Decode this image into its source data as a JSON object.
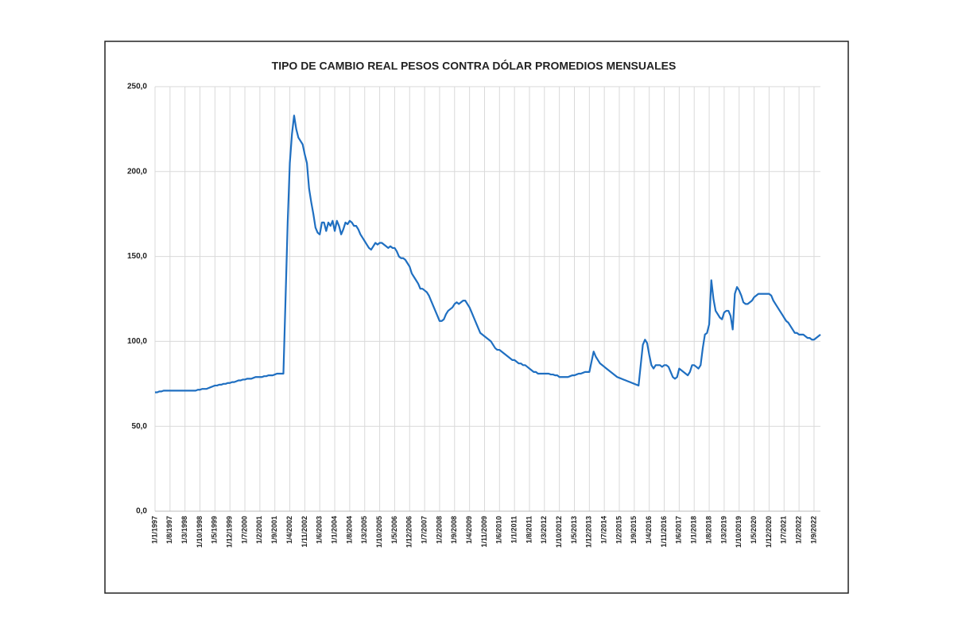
{
  "chart_data": {
    "type": "line",
    "title": "TIPO DE CAMBIO REAL PESOS CONTRA DÓLAR PROMEDIOS MENSUALES",
    "categories": [
      "1/1/1997",
      null,
      null,
      null,
      null,
      null,
      null,
      "1/8/1997",
      null,
      null,
      null,
      null,
      null,
      null,
      "1/3/1998",
      null,
      null,
      null,
      null,
      null,
      null,
      "1/10/1998",
      null,
      null,
      null,
      null,
      null,
      null,
      "1/5/1999",
      null,
      null,
      null,
      null,
      null,
      null,
      "1/12/1999",
      null,
      null,
      null,
      null,
      null,
      null,
      "1/7/2000",
      null,
      null,
      null,
      null,
      null,
      null,
      "1/2/2001",
      null,
      null,
      null,
      null,
      null,
      null,
      "1/9/2001",
      null,
      null,
      null,
      null,
      null,
      null,
      "1/4/2002",
      null,
      null,
      null,
      null,
      null,
      null,
      "1/11/2002",
      null,
      null,
      null,
      null,
      null,
      null,
      "1/6/2003",
      null,
      null,
      null,
      null,
      null,
      null,
      "1/1/2004",
      null,
      null,
      null,
      null,
      null,
      null,
      "1/8/2004",
      null,
      null,
      null,
      null,
      null,
      null,
      "1/3/2005",
      null,
      null,
      null,
      null,
      null,
      null,
      "1/10/2005",
      null,
      null,
      null,
      null,
      null,
      null,
      "1/5/2006",
      null,
      null,
      null,
      null,
      null,
      null,
      "1/12/2006",
      null,
      null,
      null,
      null,
      null,
      null,
      "1/7/2007",
      null,
      null,
      null,
      null,
      null,
      null,
      "1/2/2008",
      null,
      null,
      null,
      null,
      null,
      null,
      "1/9/2008",
      null,
      null,
      null,
      null,
      null,
      null,
      "1/4/2009",
      null,
      null,
      null,
      null,
      null,
      null,
      "1/11/2009",
      null,
      null,
      null,
      null,
      null,
      null,
      "1/6/2010",
      null,
      null,
      null,
      null,
      null,
      null,
      "1/1/2011",
      null,
      null,
      null,
      null,
      null,
      null,
      "1/8/2011",
      null,
      null,
      null,
      null,
      null,
      null,
      "1/3/2012",
      null,
      null,
      null,
      null,
      null,
      null,
      "1/10/2012",
      null,
      null,
      null,
      null,
      null,
      null,
      "1/5/2013",
      null,
      null,
      null,
      null,
      null,
      null,
      "1/12/2013",
      null,
      null,
      null,
      null,
      null,
      null,
      "1/7/2014",
      null,
      null,
      null,
      null,
      null,
      null,
      "1/2/2015",
      null,
      null,
      null,
      null,
      null,
      null,
      "1/9/2015",
      null,
      null,
      null,
      null,
      null,
      null,
      "1/4/2016",
      null,
      null,
      null,
      null,
      null,
      null,
      "1/11/2016",
      null,
      null,
      null,
      null,
      null,
      null,
      "1/6/2017",
      null,
      null,
      null,
      null,
      null,
      null,
      "1/1/2018",
      null,
      null,
      null,
      null,
      null,
      null,
      "1/8/2018",
      null,
      null,
      null,
      null,
      null,
      null,
      "1/3/2019",
      null,
      null,
      null,
      null,
      null,
      null,
      "1/10/2019",
      null,
      null,
      null,
      null,
      null,
      null,
      "1/5/2020",
      null,
      null,
      null,
      null,
      null,
      null,
      "1/12/2020",
      null,
      null,
      null,
      null,
      null,
      null,
      "1/7/2021",
      null,
      null,
      null,
      null,
      null,
      null,
      "1/2/2022",
      null,
      null,
      null,
      null,
      null,
      null,
      "1/9/2022",
      null,
      null,
      null
    ],
    "series": [
      {
        "name": "Tipo de cambio real",
        "color": "#1f6fc1",
        "values": [
          70,
          70,
          70.5,
          70.5,
          71,
          71,
          71,
          71,
          71,
          71,
          71,
          71,
          71,
          71,
          71,
          71,
          71,
          71,
          71,
          71,
          71.5,
          71.5,
          72,
          72,
          72,
          72.5,
          73,
          73.5,
          74,
          74,
          74.5,
          74.5,
          75,
          75,
          75.5,
          75.5,
          76,
          76,
          76.5,
          77,
          77,
          77.5,
          77.5,
          78,
          78,
          78,
          78.5,
          79,
          79,
          79,
          79,
          79.5,
          79.5,
          80,
          80,
          80,
          80.5,
          81,
          81,
          81,
          81,
          125,
          170,
          205,
          222,
          233,
          225,
          220,
          218,
          216,
          210,
          205,
          190,
          182,
          175,
          167,
          164,
          163,
          170,
          170,
          165,
          170,
          168,
          171,
          165,
          171,
          168,
          163,
          166,
          170,
          169,
          171,
          170,
          168,
          168,
          166,
          163,
          161,
          159,
          157,
          155,
          154,
          156,
          158,
          157,
          158,
          158,
          157,
          156,
          155,
          156,
          155,
          155,
          153,
          150,
          149,
          149,
          148,
          146,
          144,
          140,
          138,
          136,
          134,
          131,
          131,
          130,
          129,
          127,
          124,
          121,
          118,
          115,
          112,
          112,
          113,
          116,
          118,
          119,
          120,
          122,
          123,
          122,
          123,
          124,
          124,
          122,
          120,
          117,
          114,
          111,
          108,
          105,
          104,
          103,
          102,
          101,
          100,
          98,
          96,
          95,
          95,
          94,
          93,
          92,
          91,
          90,
          89,
          89,
          88,
          87,
          87,
          86,
          86,
          85,
          84,
          83,
          82,
          82,
          81,
          81,
          81,
          81,
          81,
          81,
          80.5,
          80.5,
          80,
          80,
          79,
          79,
          79,
          79,
          79,
          79.5,
          80,
          80,
          80.5,
          81,
          81,
          81.5,
          82,
          82,
          82,
          88,
          94,
          91,
          89,
          87,
          86,
          85,
          84,
          83,
          82,
          81,
          80,
          79,
          78.5,
          78,
          77.5,
          77,
          76.5,
          76,
          75.5,
          75,
          74.5,
          74,
          86,
          98,
          101,
          99,
          92,
          86,
          84,
          86,
          86,
          86,
          85,
          86,
          86,
          85,
          82,
          79,
          78,
          79,
          84,
          83,
          82,
          81,
          80,
          82,
          86,
          86,
          85,
          84,
          86,
          96,
          104,
          105,
          110,
          136,
          125,
          118,
          116,
          114,
          113,
          117,
          118,
          118,
          115,
          107,
          128,
          132,
          130,
          127,
          123,
          122,
          122,
          123,
          124,
          126,
          127,
          128,
          128,
          128,
          128,
          128,
          128,
          127,
          124,
          122,
          120,
          118,
          116,
          114,
          112,
          111,
          109,
          107,
          105,
          105,
          104,
          104,
          104,
          103,
          102,
          102,
          101,
          101,
          102,
          103,
          104
        ]
      }
    ],
    "ylim": [
      0,
      250
    ],
    "yticks": [
      {
        "value": 0,
        "label": "0,0"
      },
      {
        "value": 50,
        "label": "50,0"
      },
      {
        "value": 100,
        "label": "100,0"
      },
      {
        "value": 150,
        "label": "150,0"
      },
      {
        "value": 200,
        "label": "200,0"
      },
      {
        "value": 250,
        "label": "250,0"
      }
    ],
    "grid": true
  }
}
